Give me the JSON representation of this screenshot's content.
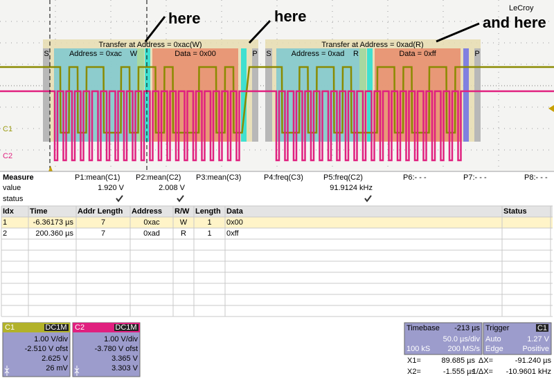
{
  "brand": "LeCroy",
  "annotations": [
    "here",
    "here",
    "and here"
  ],
  "channel_labels": [
    "C1",
    "C2"
  ],
  "decode": [
    {
      "transfer": "Transfer at Address = 0xac(W)",
      "start": "S",
      "address": "Address = 0xac",
      "rw": "W",
      "data": "Data = 0x00",
      "stop": "P"
    },
    {
      "transfer": "Transfer at Address = 0xad(R)",
      "start": "S",
      "address": "Address = 0xad",
      "rw": "R",
      "data": "Data = 0xff",
      "stop": "P"
    }
  ],
  "measure": {
    "title": "Measure",
    "row_labels": [
      "value",
      "status"
    ],
    "params": [
      {
        "name": "P1:mean(C1)",
        "value": "1.920 V",
        "status_ok": true
      },
      {
        "name": "P2:mean(C2)",
        "value": "2.008 V",
        "status_ok": true
      },
      {
        "name": "P3:mean(C3)"
      },
      {
        "name": "P4:freq(C3)"
      },
      {
        "name": "P5:freq(C2)",
        "value": "91.9124 kHz",
        "status_ok": true
      },
      {
        "name": "P6:- - -"
      },
      {
        "name": "P7:- - -"
      },
      {
        "name": "P8:- - -"
      }
    ]
  },
  "table": {
    "headers": [
      "Idx",
      "Time",
      "Addr Length",
      "Address",
      "R/W",
      "Length",
      "Data",
      "Status"
    ],
    "rows": [
      [
        "1",
        "-6.36173 µs",
        "7",
        "0xac",
        "W",
        "1",
        "0x00"
      ],
      [
        "2",
        "200.360 µs",
        "7",
        "0xad",
        "R",
        "1",
        "0xff"
      ]
    ]
  },
  "channels": [
    {
      "name": "C1",
      "coupling": "DC1M",
      "scale": "1.00 V/div",
      "offset": "-2.510 V ofst",
      "down": "2.625 V",
      "up": "26 mV",
      "color": "#b2b22a"
    },
    {
      "name": "C2",
      "coupling": "DC1M",
      "scale": "1.00 V/div",
      "offset": "-3.780 V ofst",
      "down": "3.365 V",
      "up": "3.303 V",
      "color": "#e0207f"
    }
  ],
  "timebase": {
    "label": "Timebase",
    "delay": "-213 µs",
    "scale": "50.0 µs/div",
    "samples": "100 kS",
    "rate": "200 MS/s"
  },
  "trigger": {
    "label": "Trigger",
    "source": "C1",
    "mode": "Auto",
    "level": "1.27 V",
    "type": "Edge",
    "slope": "Positive"
  },
  "cursors": [
    {
      "label": "X1=",
      "value": "89.685 µs",
      "dlabel": "ΔX=",
      "dvalue": "-91.240 µs"
    },
    {
      "label": "X2=",
      "value": "-1.555 µs",
      "dlabel": "1/ΔX=",
      "dvalue": "-10.9601 kHz"
    }
  ]
}
